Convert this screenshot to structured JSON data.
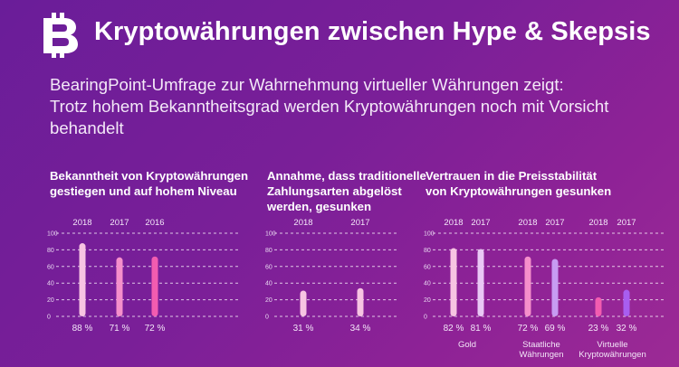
{
  "header": {
    "logo_icon": "bitcoin-icon",
    "title": "Kryptowährungen zwischen Hype & Skepsis",
    "subtitle_lines": [
      "BearingPoint-Umfrage zur Wahrnehmung virtueller Währungen zeigt:",
      "Trotz hohem Bekanntheitsgrad werden Kryptowährungen noch mit Vorsicht",
      "behandelt"
    ]
  },
  "colors": {
    "light_pink": "#f7c4e2",
    "pink": "#f58fcb",
    "magenta": "#f25cb0",
    "light_lavender": "#e9c8f5",
    "lavender": "#c79cf2",
    "purple": "#a85ef0"
  },
  "chart_data": [
    {
      "type": "bar",
      "title": "Bekanntheit von Kryptowährungen\ngestiegen und auf hohem Niveau",
      "categories": [
        "2018",
        "2017",
        "2016"
      ],
      "values": [
        88,
        71,
        72
      ],
      "value_labels": [
        "88 %",
        "71 %",
        "72 %"
      ],
      "ylim": [
        0,
        100
      ],
      "yticks": [
        0,
        20,
        40,
        60,
        80,
        100
      ],
      "grid": true
    },
    {
      "type": "bar",
      "title": "Annahme, dass traditionelle\nZahlungsarten abgelöst\nwerden, gesunken",
      "categories": [
        "2018",
        "2017"
      ],
      "values": [
        31,
        34
      ],
      "value_labels": [
        "31 %",
        "34 %"
      ],
      "ylim": [
        0,
        100
      ],
      "yticks": [
        0,
        20,
        40,
        60,
        80,
        100
      ],
      "grid": true
    },
    {
      "type": "bar",
      "title": "Vertrauen in die Preisstabilität\nvon Kryptowährungen gesunken",
      "categories": [
        "Gold",
        "Staatliche\nWährungen",
        "Virtuelle\nKryptowährungen"
      ],
      "series": [
        {
          "name": "2018",
          "values": [
            82,
            72,
            23
          ],
          "value_labels": [
            "82 %",
            "72 %",
            "23 %"
          ]
        },
        {
          "name": "2017",
          "values": [
            81,
            69,
            32
          ],
          "value_labels": [
            "81 %",
            "69 %",
            "32 %"
          ]
        }
      ],
      "ylim": [
        0,
        100
      ],
      "yticks": [
        0,
        20,
        40,
        60,
        80,
        100
      ],
      "grid": true
    }
  ]
}
